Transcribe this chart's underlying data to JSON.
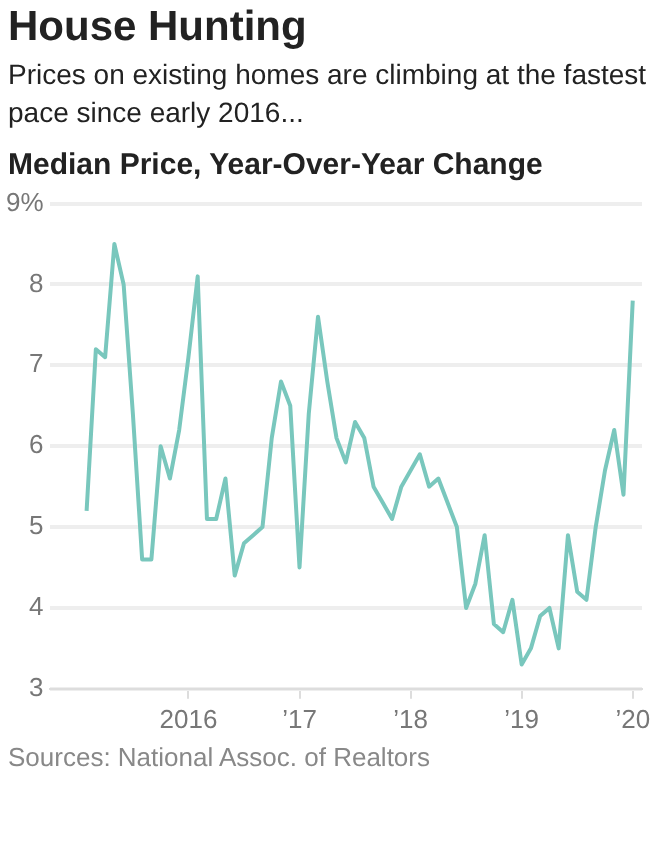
{
  "chart_data": {
    "type": "line",
    "title": "House Hunting",
    "subtitle": "Prices on existing homes are climbing at the fastest pace since early 2016...",
    "ylabel": "Median Price, Year-Over-Year Change",
    "x": [
      "2015-02",
      "2015-03",
      "2015-04",
      "2015-05",
      "2015-06",
      "2015-07",
      "2015-08",
      "2015-09",
      "2015-10",
      "2015-11",
      "2015-12",
      "2016-01",
      "2016-02",
      "2016-03",
      "2016-04",
      "2016-05",
      "2016-06",
      "2016-07",
      "2016-08",
      "2016-09",
      "2016-10",
      "2016-11",
      "2016-12",
      "2017-01",
      "2017-02",
      "2017-03",
      "2017-04",
      "2017-05",
      "2017-06",
      "2017-07",
      "2017-08",
      "2017-09",
      "2017-10",
      "2017-11",
      "2017-12",
      "2018-01",
      "2018-02",
      "2018-03",
      "2018-04",
      "2018-05",
      "2018-06",
      "2018-07",
      "2018-08",
      "2018-09",
      "2018-10",
      "2018-11",
      "2018-12",
      "2019-01",
      "2019-02",
      "2019-03",
      "2019-04",
      "2019-05",
      "2019-06",
      "2019-07",
      "2019-08",
      "2019-09",
      "2019-10",
      "2019-11",
      "2019-12",
      "2020-01"
    ],
    "series": [
      {
        "color": "#79c7bd",
        "values": [
          5.2,
          7.2,
          7.1,
          8.5,
          8.0,
          6.4,
          4.6,
          4.6,
          6.0,
          5.6,
          6.2,
          7.1,
          8.1,
          5.1,
          5.1,
          5.6,
          4.4,
          4.8,
          4.9,
          5.0,
          6.1,
          6.8,
          6.5,
          4.5,
          6.4,
          7.6,
          6.8,
          6.1,
          5.8,
          6.3,
          6.1,
          5.5,
          5.3,
          5.1,
          5.5,
          5.7,
          5.9,
          5.5,
          5.6,
          5.3,
          5.0,
          4.0,
          4.3,
          4.9,
          3.8,
          3.7,
          4.1,
          3.3,
          3.5,
          3.9,
          4.0,
          3.5,
          4.9,
          4.2,
          4.1,
          5.0,
          5.7,
          6.2,
          5.4,
          7.8
        ]
      }
    ],
    "xlim": [
      "2014-10",
      "2020-02"
    ],
    "xticks": [
      {
        "value": "2016-01",
        "label": "2016"
      },
      {
        "value": "2017-01",
        "label": "’17"
      },
      {
        "value": "2018-01",
        "label": "’18"
      },
      {
        "value": "2019-01",
        "label": "’19"
      },
      {
        "value": "2020-01",
        "label": "’20"
      }
    ],
    "ylim": [
      3,
      9
    ],
    "yticks": [
      3,
      4,
      5,
      6,
      7,
      8,
      {
        "value": 9,
        "label": "9%"
      }
    ],
    "grid": "y",
    "legend": false,
    "marker": "none",
    "line_style": "solid",
    "annotations": [
      "Sources: National Assoc. of Realtors"
    ]
  }
}
